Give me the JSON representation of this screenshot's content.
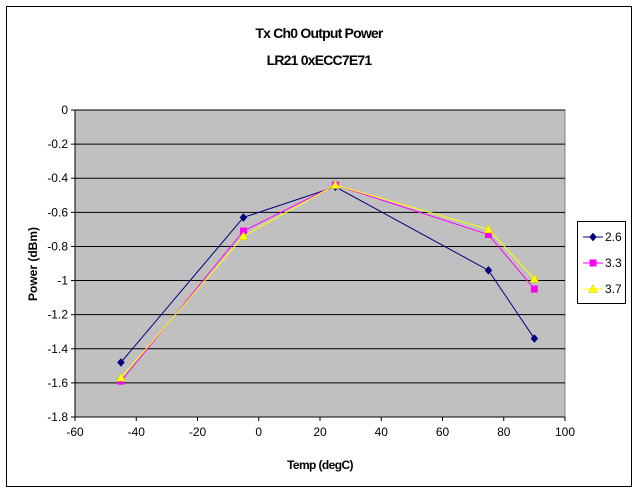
{
  "chart_data": {
    "type": "line",
    "title": "Tx Ch0 Output Power",
    "subtitle": "LR21 0xECC7E71",
    "xlabel": "Temp (degC)",
    "ylabel": "Power (dBm)",
    "xlim": [
      -60,
      100
    ],
    "ylim": [
      -1.8,
      0
    ],
    "xticks": [
      "-60",
      "-40",
      "-20",
      "0",
      "20",
      "40",
      "60",
      "80",
      "100"
    ],
    "yticks": [
      "0",
      "-0.2",
      "-0.4",
      "-0.6",
      "-0.8",
      "-1",
      "-1.2",
      "-1.4",
      "-1.6",
      "-1.8"
    ],
    "x_values": [
      -45,
      -5,
      25,
      75,
      90
    ],
    "grid": true,
    "legend_position": "right",
    "plot_background": "#c0c0c0",
    "series": [
      {
        "name": "2.6",
        "color": "#000080",
        "marker": "diamond",
        "y": [
          -1.48,
          -0.63,
          -0.45,
          -0.94,
          -1.34
        ]
      },
      {
        "name": "3.3",
        "color": "#ff00ff",
        "marker": "square",
        "y": [
          -1.59,
          -0.71,
          -0.44,
          -0.73,
          -1.05
        ]
      },
      {
        "name": "3.7",
        "color": "#ffff00",
        "marker": "triangle",
        "y": [
          -1.57,
          -0.74,
          -0.44,
          -0.7,
          -0.99
        ]
      }
    ]
  }
}
